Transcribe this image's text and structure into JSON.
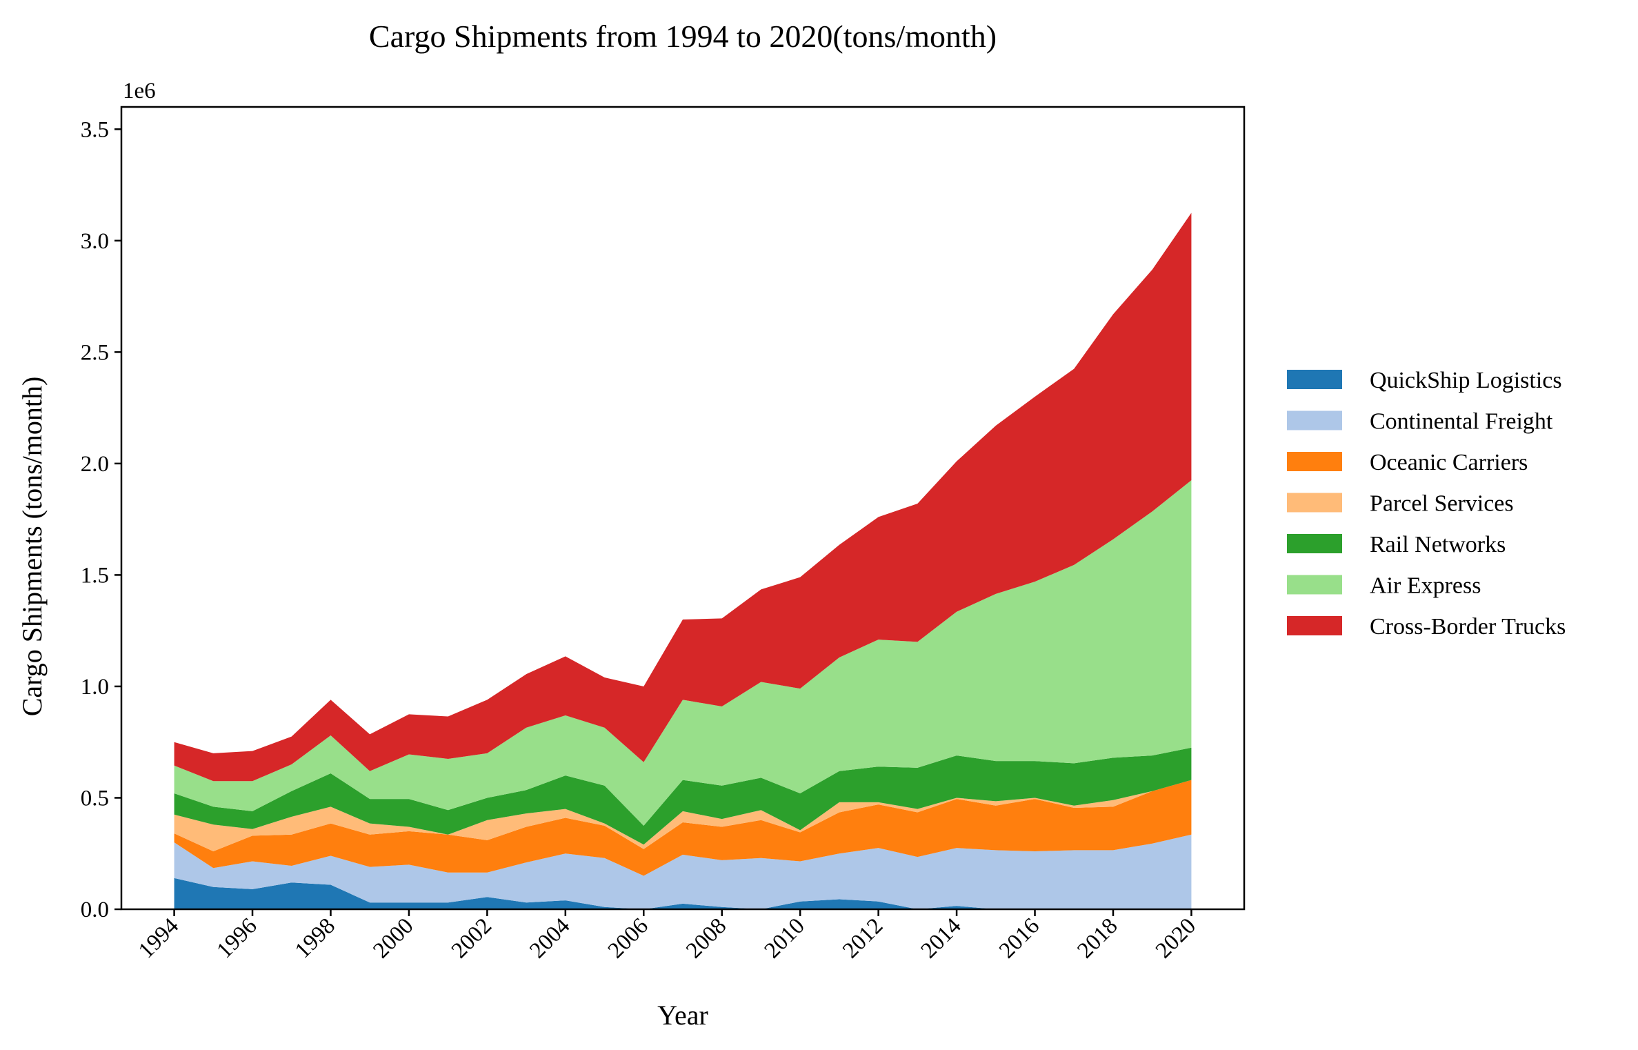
{
  "chart_data": {
    "type": "area",
    "stacked": true,
    "title": "Cargo Shipments from 1994 to 2020(tons/month)",
    "xlabel": "Year",
    "ylabel": "Cargo Shipments (tons/month)",
    "y_offset_label": "1e6",
    "x": [
      1994,
      1995,
      1996,
      1997,
      1998,
      1999,
      2000,
      2001,
      2002,
      2003,
      2004,
      2005,
      2006,
      2007,
      2008,
      2009,
      2010,
      2011,
      2012,
      2013,
      2014,
      2015,
      2016,
      2017,
      2018,
      2019,
      2020
    ],
    "xlim": [
      1992.65,
      2021.35
    ],
    "ylim": [
      0,
      3600000
    ],
    "x_ticks": [
      1994,
      1996,
      1998,
      2000,
      2002,
      2004,
      2006,
      2008,
      2010,
      2012,
      2014,
      2016,
      2018,
      2020
    ],
    "y_ticks": [
      0,
      500000,
      1000000,
      1500000,
      2000000,
      2500000,
      3000000,
      3500000
    ],
    "y_tick_labels": [
      "0.0",
      "0.5",
      "1.0",
      "1.5",
      "2.0",
      "2.5",
      "3.0",
      "3.5"
    ],
    "grid": false,
    "legend_position": "right",
    "series": [
      {
        "name": "QuickShip Logistics",
        "color": "#1f77b4",
        "values": [
          140000,
          100000,
          90000,
          120000,
          110000,
          30000,
          30000,
          30000,
          55000,
          30000,
          40000,
          10000,
          0,
          25000,
          10000,
          0,
          35000,
          45000,
          35000,
          0,
          15000,
          0,
          0,
          0,
          0,
          0,
          0
        ]
      },
      {
        "name": "Continental Freight",
        "color": "#aec7e8",
        "values": [
          160000,
          85000,
          125000,
          75000,
          130000,
          160000,
          170000,
          135000,
          110000,
          180000,
          210000,
          220000,
          150000,
          220000,
          210000,
          230000,
          180000,
          205000,
          240000,
          235000,
          260000,
          265000,
          260000,
          265000,
          265000,
          295000,
          335000
        ]
      },
      {
        "name": "Oceanic Carriers",
        "color": "#ff7f0e",
        "values": [
          40000,
          75000,
          115000,
          140000,
          145000,
          145000,
          150000,
          170000,
          145000,
          160000,
          160000,
          145000,
          120000,
          145000,
          150000,
          170000,
          130000,
          185000,
          195000,
          200000,
          220000,
          200000,
          235000,
          190000,
          195000,
          235000,
          245000
        ]
      },
      {
        "name": "Parcel Services",
        "color": "#ffbb78",
        "values": [
          85000,
          120000,
          30000,
          80000,
          75000,
          50000,
          20000,
          0,
          90000,
          60000,
          40000,
          10000,
          20000,
          50000,
          35000,
          45000,
          10000,
          45000,
          10000,
          15000,
          5000,
          20000,
          5000,
          10000,
          30000,
          0,
          0
        ]
      },
      {
        "name": "Rail Networks",
        "color": "#2ca02c",
        "values": [
          95000,
          80000,
          80000,
          115000,
          150000,
          110000,
          125000,
          110000,
          100000,
          105000,
          150000,
          170000,
          85000,
          140000,
          150000,
          145000,
          165000,
          140000,
          160000,
          185000,
          190000,
          180000,
          165000,
          190000,
          190000,
          160000,
          145000
        ]
      },
      {
        "name": "Air Express",
        "color": "#98df8a",
        "values": [
          125000,
          115000,
          135000,
          120000,
          170000,
          125000,
          200000,
          230000,
          200000,
          280000,
          270000,
          260000,
          285000,
          360000,
          355000,
          430000,
          470000,
          510000,
          570000,
          565000,
          645000,
          750000,
          805000,
          890000,
          980000,
          1095000,
          1200000
        ]
      },
      {
        "name": "Cross-Border Trucks",
        "color": "#d62728",
        "values": [
          105000,
          125000,
          135000,
          125000,
          160000,
          165000,
          180000,
          190000,
          240000,
          240000,
          265000,
          225000,
          340000,
          360000,
          395000,
          415000,
          500000,
          505000,
          550000,
          620000,
          675000,
          755000,
          830000,
          880000,
          1010000,
          1085000,
          1200000
        ]
      }
    ]
  }
}
